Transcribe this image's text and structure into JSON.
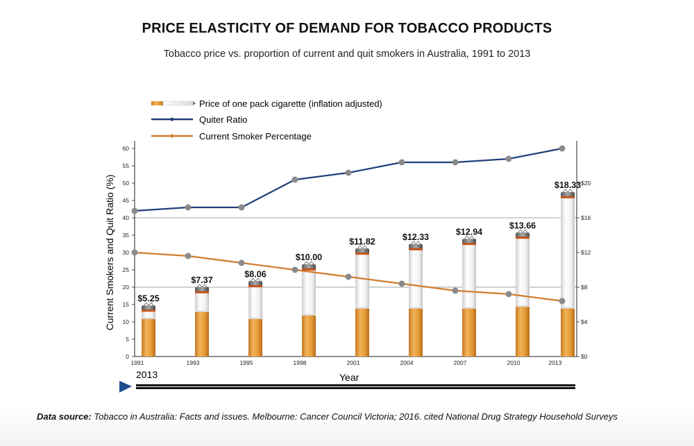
{
  "chart_data": {
    "type": "bar",
    "title": "PRICE ELASTICITY OF DEMAND FOR TOBACCO PRODUCTS",
    "subtitle": "Tobacco price vs. proportion of current and quit smokers in Australia, 1991 to 2013",
    "xlabel": "Year",
    "ylabel": "Current Smokers and Quit Ratio (%)",
    "categories": [
      "1991",
      "1993",
      "1995",
      "1998",
      "2001",
      "2004",
      "2007",
      "2010",
      "2013"
    ],
    "ylim": [
      0,
      60
    ],
    "y_ticks": [
      "0",
      "5",
      "10",
      "15",
      "20",
      "25",
      "30",
      "35",
      "40",
      "45",
      "50",
      "55",
      "60"
    ],
    "y2lim": [
      0,
      24
    ],
    "y2_ticks": [
      "$0",
      "$4",
      "$8",
      "$12",
      "$16",
      "$20"
    ],
    "legend_position": "top-left",
    "series": [
      {
        "name": "Price of one pack cigarette (inflation adjusted)",
        "kind": "bar",
        "axis": "right",
        "values": [
          5.25,
          7.37,
          8.06,
          10.0,
          11.82,
          12.33,
          12.94,
          13.66,
          18.33
        ],
        "labels": [
          "$5.25",
          "$7.37",
          "$8.06",
          "$10.00",
          "$11.82",
          "$12.33",
          "$12.94",
          "$13.66",
          "$18.33"
        ],
        "filter_heights": [
          11,
          13,
          11,
          12,
          14,
          14,
          14,
          14.5,
          14
        ],
        "color": "#e59a34"
      },
      {
        "name": "Quiter Ratio",
        "kind": "line",
        "axis": "left",
        "values": [
          42,
          43,
          43,
          51,
          53,
          56,
          56,
          57,
          60
        ],
        "color": "#1f3e78"
      },
      {
        "name": "Current Smoker Percentage",
        "kind": "line",
        "axis": "left",
        "values": [
          30,
          29,
          27,
          25,
          23,
          21,
          19,
          18,
          16
        ],
        "color": "#d07c2c"
      }
    ],
    "gridlines": [
      20,
      40
    ],
    "marker_color": "#8a8a8a"
  },
  "timeline": {
    "current_label": "2013"
  },
  "source": {
    "label": "Data source:",
    "text": "Tobacco in Australia: Facts and issues. Melbourne: Cancer Council Victoria; 2016. cited National Drug Strategy Household Surveys"
  }
}
